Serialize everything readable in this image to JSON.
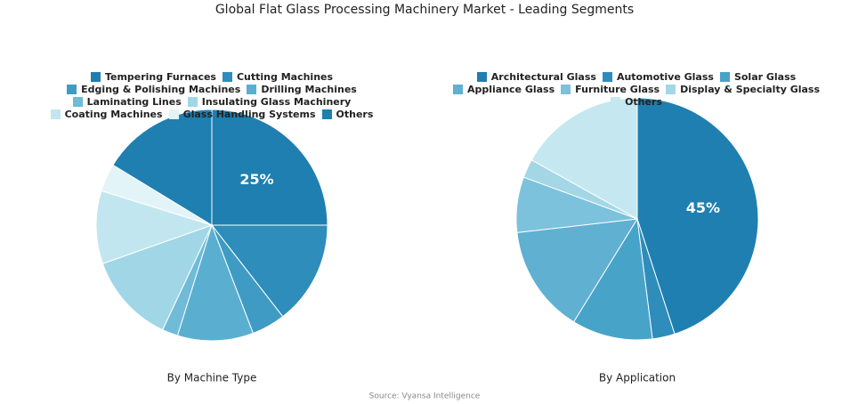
{
  "title": "Global Flat Glass Processing Machinery Market - Leading Segments",
  "source": "Source: Vyansa Intelligence",
  "chart_data": [
    {
      "type": "pie",
      "title": "By Machine Type",
      "categories": [
        "Tempering Furnaces",
        "Cutting Machines",
        "Edging & Polishing Machines",
        "Drilling Machines",
        "Laminating Lines",
        "Insulating Glass Machinery",
        "Coating Machines",
        "Glass Handling Systems",
        "Others"
      ],
      "values": [
        25,
        14.5,
        4.7,
        10.6,
        2.2,
        12.6,
        10.2,
        3.9,
        16.3
      ],
      "value_labels": [
        "25%",
        null,
        null,
        null,
        null,
        null,
        null,
        null,
        null
      ],
      "colors": [
        "#1f7fb0",
        "#2e8dbb",
        "#3f9bc4",
        "#5aafd0",
        "#6fbbd8",
        "#a0d6e6",
        "#c2e6ef",
        "#e3f4f8",
        "#1f7fb0"
      ]
    },
    {
      "type": "pie",
      "title": "By Application",
      "categories": [
        "Architectural Glass",
        "Automotive Glass",
        "Solar Glass",
        "Appliance Glass",
        "Furniture Glass",
        "Display & Specialty Glass",
        "Others"
      ],
      "values": [
        45,
        3,
        10.8,
        14.4,
        7.4,
        2.5,
        16.9
      ],
      "value_labels": [
        "45%",
        null,
        null,
        null,
        null,
        null,
        null
      ],
      "colors": [
        "#1f7fb0",
        "#2e8dbb",
        "#48a3c8",
        "#5fb0d1",
        "#7cc2dc",
        "#a3d7e6",
        "#c5e8f0"
      ]
    }
  ]
}
